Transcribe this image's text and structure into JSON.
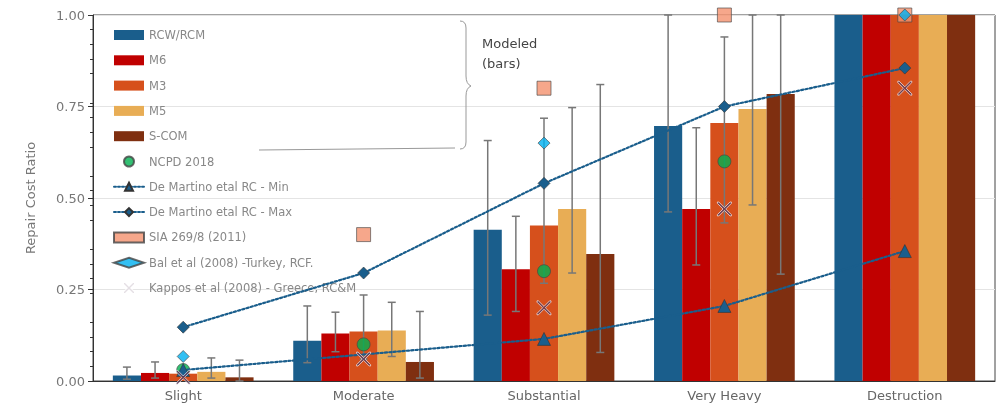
{
  "chart_data": {
    "type": "bar",
    "ylabel": "Repair Cost Ratio",
    "categories": [
      "Slight",
      "Moderate",
      "Substantial",
      "Very Heavy",
      "Destruction"
    ],
    "series": [
      {
        "name": "RCW/RCM",
        "color": "#1a5e8c",
        "values": [
          0.015,
          0.11,
          0.413,
          0.697,
          1.0
        ],
        "errors": [
          [
            0.005,
            0.038
          ],
          [
            0.05,
            0.205
          ],
          [
            0.18,
            0.657
          ],
          [
            0.462,
            1.0
          ],
          null
        ]
      },
      {
        "name": "M6",
        "color": "#c00000",
        "values": [
          0.022,
          0.13,
          0.305,
          0.47,
          1.0
        ],
        "errors": [
          [
            0.008,
            0.052
          ],
          [
            0.08,
            0.188
          ],
          [
            0.19,
            0.45
          ],
          [
            0.317,
            0.692
          ],
          null
        ]
      },
      {
        "name": "M3",
        "color": "#d6501c",
        "values": [
          0.02,
          0.135,
          0.425,
          0.705,
          1.0
        ],
        "errors": [
          null,
          [
            0.06,
            0.235
          ],
          [
            0.267,
            0.718
          ],
          [
            0.432,
            0.94
          ],
          null
        ]
      },
      {
        "name": "M5",
        "color": "#e8ad55",
        "values": [
          0.025,
          0.138,
          0.47,
          0.743,
          1.0
        ],
        "errors": [
          [
            0.008,
            0.063
          ],
          [
            0.067,
            0.215
          ],
          [
            0.295,
            0.747
          ],
          [
            0.481,
            1.0
          ],
          null
        ]
      },
      {
        "name": "S-COM",
        "color": "#7f2f10",
        "values": [
          0.01,
          0.052,
          0.347,
          0.784,
          1.0
        ],
        "errors": [
          [
            0.0,
            0.057
          ],
          [
            0.008,
            0.19
          ],
          [
            0.078,
            0.81
          ],
          [
            0.292,
            1.0
          ],
          null
        ]
      },
      {
        "name": "NCPD 2018",
        "type": "scatter",
        "marker": "circle",
        "color": "#00b050",
        "values": [
          0.03,
          0.1,
          0.3,
          0.6,
          null
        ]
      },
      {
        "name": "De Martino etal RC - Min",
        "type": "line",
        "marker": "triangle",
        "line_style": "dotted",
        "color": "#1a5e8c",
        "values": [
          0.03,
          null,
          0.115,
          0.205,
          0.355
        ]
      },
      {
        "name": "De Martino etal RC - Max",
        "type": "line",
        "marker": "diamond",
        "line_style": "dotted",
        "color": "#1a5e8c",
        "values": [
          0.147,
          0.295,
          0.54,
          0.75,
          0.855
        ]
      },
      {
        "name": "SIA 269/8 (2011)",
        "type": "scatter",
        "marker": "square",
        "color": "#f4916e",
        "values": [
          null,
          0.4,
          0.8,
          1.0,
          1.0
        ]
      },
      {
        "name": "Bal et al (2008) -Turkey, RCF.",
        "type": "scatter",
        "marker": "diamond",
        "color": "#00b0f0",
        "values": [
          0.067,
          null,
          0.65,
          null,
          1.0
        ]
      },
      {
        "name": "Kappos et al (2008) - Greece, RC&M",
        "type": "scatter",
        "marker": "cross",
        "color": "#5a3a5a",
        "values": [
          0.01,
          0.06,
          0.2,
          0.47,
          0.8
        ]
      }
    ],
    "ylim": [
      0,
      1
    ],
    "yticks": [
      {
        "value": 0,
        "label": "0.00"
      },
      {
        "value": 0.25,
        "label": "0.25"
      },
      {
        "value": 0.5,
        "label": "0.50"
      },
      {
        "value": 0.75,
        "label": "0.75"
      },
      {
        "value": 1,
        "label": "1.00"
      }
    ],
    "grid": "y",
    "legend": "top left",
    "annotations": [
      "Modeled\n(bars)"
    ]
  }
}
